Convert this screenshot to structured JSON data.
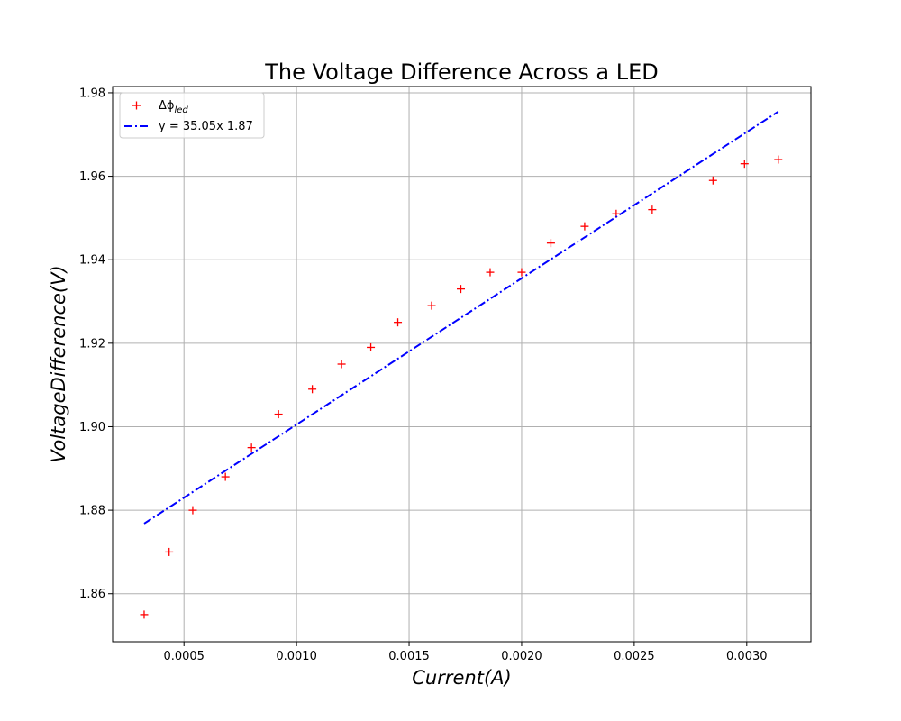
{
  "chart_data": {
    "type": "scatter",
    "title": "The Voltage Difference Across a LED",
    "xlabel": "Current(A)",
    "ylabel": "VoltageDifference(V)",
    "xlim": [
      0.000183,
      0.003285
    ],
    "ylim": [
      1.8485,
      1.9815
    ],
    "xticks": [
      {
        "value": 0.0005,
        "label": "0.0005"
      },
      {
        "value": 0.001,
        "label": "0.0010"
      },
      {
        "value": 0.0015,
        "label": "0.0015"
      },
      {
        "value": 0.002,
        "label": "0.0020"
      },
      {
        "value": 0.0025,
        "label": "0.0025"
      },
      {
        "value": 0.003,
        "label": "0.0030"
      }
    ],
    "yticks": [
      {
        "value": 1.86,
        "label": "1.86"
      },
      {
        "value": 1.88,
        "label": "1.88"
      },
      {
        "value": 1.9,
        "label": "1.90"
      },
      {
        "value": 1.92,
        "label": "1.92"
      },
      {
        "value": 1.94,
        "label": "1.94"
      },
      {
        "value": 1.96,
        "label": "1.96"
      },
      {
        "value": 1.98,
        "label": "1.98"
      }
    ],
    "grid": true,
    "legend_position": "top-left",
    "series": [
      {
        "name": "Δϕ",
        "name_subscript": "led",
        "kind": "scatter",
        "marker": "+",
        "color": "#ff0000",
        "points": [
          {
            "x": 0.000323,
            "y": 1.855
          },
          {
            "x": 0.000434,
            "y": 1.87
          },
          {
            "x": 0.000539,
            "y": 1.88
          },
          {
            "x": 0.000684,
            "y": 1.888
          },
          {
            "x": 0.0008,
            "y": 1.895
          },
          {
            "x": 0.00092,
            "y": 1.903
          },
          {
            "x": 0.00107,
            "y": 1.909
          },
          {
            "x": 0.0012,
            "y": 1.915
          },
          {
            "x": 0.00133,
            "y": 1.919
          },
          {
            "x": 0.00145,
            "y": 1.925
          },
          {
            "x": 0.0016,
            "y": 1.929
          },
          {
            "x": 0.00173,
            "y": 1.933
          },
          {
            "x": 0.00186,
            "y": 1.937
          },
          {
            "x": 0.002,
            "y": 1.937
          },
          {
            "x": 0.00213,
            "y": 1.944
          },
          {
            "x": 0.00228,
            "y": 1.948
          },
          {
            "x": 0.00242,
            "y": 1.951
          },
          {
            "x": 0.00258,
            "y": 1.952
          },
          {
            "x": 0.00285,
            "y": 1.959
          },
          {
            "x": 0.00299,
            "y": 1.963
          },
          {
            "x": 0.00314,
            "y": 1.964
          }
        ]
      },
      {
        "name": "y = 35.05x 1.87",
        "kind": "line",
        "style": "dash-dot",
        "color": "#0000ff",
        "points": [
          {
            "x": 0.000323,
            "y": 1.8768
          },
          {
            "x": 0.00314,
            "y": 1.9755
          }
        ]
      }
    ]
  }
}
